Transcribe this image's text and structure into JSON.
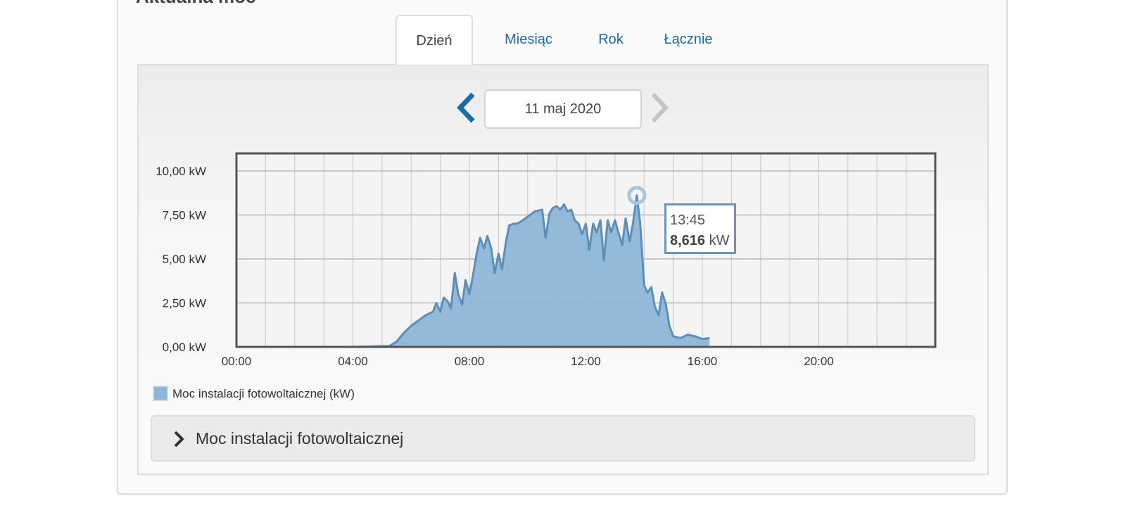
{
  "card": {
    "title": "Aktualna moc"
  },
  "tabs": [
    {
      "label": "Dzień",
      "active": true
    },
    {
      "label": "Miesiąc",
      "active": false
    },
    {
      "label": "Rok",
      "active": false
    },
    {
      "label": "Łącznie",
      "active": false
    }
  ],
  "date_nav": {
    "date": "11 maj 2020",
    "prev_icon": "chevron-left-icon",
    "next_icon": "chevron-right-icon"
  },
  "colors": {
    "accent": "#1a6aa6",
    "area_fill": "#8eb6d8",
    "area_line": "#5b8fba",
    "disabled": "#c4c4c4"
  },
  "tooltip": {
    "time": "13:45",
    "value": "8,616",
    "unit": "kW"
  },
  "legend": {
    "label": "Moc instalacji fotowoltaicznej (kW)"
  },
  "accordion": {
    "label": "Moc instalacji fotowoltaicznej",
    "icon": "chevron-right-icon",
    "expanded": false
  },
  "chart_data": {
    "type": "area",
    "title": "",
    "xlabel": "",
    "ylabel": "",
    "ylim": [
      0,
      11
    ],
    "xlim": [
      "00:00",
      "24:00"
    ],
    "x_ticks": [
      "00:00",
      "04:00",
      "08:00",
      "12:00",
      "16:00",
      "20:00"
    ],
    "y_ticks": [
      "0,00 kW",
      "2,50 kW",
      "5,00 kW",
      "7,50 kW",
      "10,00 kW"
    ],
    "grid": true,
    "legend_position": "bottom-left",
    "highlight": {
      "x": "13:45",
      "y": 8.616
    },
    "series": [
      {
        "name": "Moc instalacji fotowoltaicznej (kW)",
        "x": [
          "00:00",
          "04:00",
          "05:15",
          "05:30",
          "05:45",
          "06:00",
          "06:15",
          "06:30",
          "06:45",
          "06:52",
          "07:00",
          "07:07",
          "07:15",
          "07:22",
          "07:30",
          "07:37",
          "07:45",
          "07:52",
          "08:00",
          "08:07",
          "08:15",
          "08:22",
          "08:30",
          "08:37",
          "08:45",
          "08:52",
          "09:00",
          "09:07",
          "09:15",
          "09:22",
          "09:30",
          "09:37",
          "09:45",
          "10:00",
          "10:15",
          "10:30",
          "10:37",
          "10:45",
          "10:52",
          "11:00",
          "11:07",
          "11:15",
          "11:22",
          "11:30",
          "11:37",
          "11:45",
          "11:52",
          "12:00",
          "12:07",
          "12:15",
          "12:22",
          "12:30",
          "12:37",
          "12:45",
          "12:52",
          "13:00",
          "13:07",
          "13:15",
          "13:22",
          "13:30",
          "13:37",
          "13:45",
          "13:52",
          "14:00",
          "14:07",
          "14:15",
          "14:22",
          "14:30",
          "14:37",
          "14:45",
          "14:52",
          "15:00",
          "15:15",
          "15:30",
          "15:45",
          "16:00",
          "16:15"
        ],
        "y": [
          0,
          0,
          0.05,
          0.3,
          0.8,
          1.2,
          1.5,
          1.8,
          2.0,
          2.5,
          2.0,
          2.8,
          2.6,
          2.2,
          4.2,
          3.0,
          2.4,
          3.8,
          3.0,
          4.0,
          5.3,
          6.2,
          5.6,
          6.3,
          5.6,
          4.2,
          5.3,
          4.4,
          5.9,
          6.9,
          7.0,
          7.0,
          7.1,
          7.4,
          7.7,
          7.8,
          6.2,
          7.6,
          7.9,
          8.0,
          7.8,
          8.1,
          7.7,
          7.8,
          7.2,
          7.0,
          6.4,
          7.0,
          5.5,
          7.0,
          6.5,
          7.2,
          4.9,
          7.2,
          6.5,
          7.2,
          6.5,
          5.8,
          7.3,
          6.0,
          7.0,
          8.616,
          7.0,
          3.5,
          3.1,
          3.4,
          2.3,
          1.8,
          3.1,
          2.4,
          1.2,
          0.6,
          0.5,
          0.7,
          0.6,
          0.45,
          0.5
        ]
      }
    ]
  }
}
